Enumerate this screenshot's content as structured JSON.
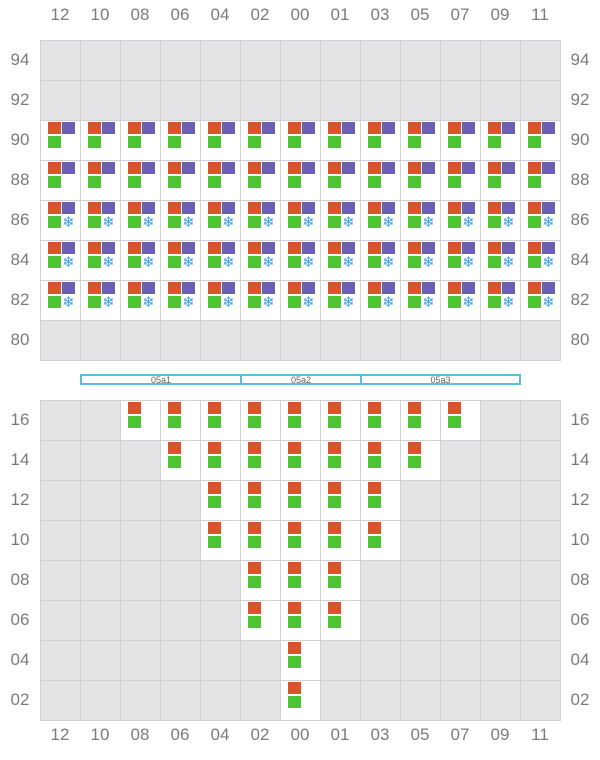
{
  "columns": [
    "12",
    "10",
    "08",
    "06",
    "04",
    "02",
    "00",
    "01",
    "03",
    "05",
    "07",
    "09",
    "11"
  ],
  "deck": {
    "rows": [
      "94",
      "92",
      "90",
      "88",
      "86",
      "84",
      "82",
      "80"
    ],
    "slots": {
      "90": {
        "from": 0,
        "to": 12,
        "pattern": "3box"
      },
      "88": {
        "from": 0,
        "to": 12,
        "pattern": "3box"
      },
      "86": {
        "from": 0,
        "to": 12,
        "pattern": "reefer"
      },
      "84": {
        "from": 0,
        "to": 12,
        "pattern": "reefer"
      },
      "82": {
        "from": 0,
        "to": 12,
        "pattern": "reefer"
      }
    }
  },
  "hatch_covers": [
    {
      "label": "05a1"
    },
    {
      "label": "05a2"
    },
    {
      "label": "05a3"
    }
  ],
  "hold": {
    "rows": [
      "16",
      "14",
      "12",
      "10",
      "08",
      "06",
      "04",
      "02"
    ],
    "slots": {
      "16": {
        "from": 2,
        "to": 10
      },
      "14": {
        "from": 3,
        "to": 9
      },
      "12": {
        "from": 4,
        "to": 8
      },
      "10": {
        "from": 4,
        "to": 8
      },
      "08": {
        "from": 5,
        "to": 7
      },
      "06": {
        "from": 5,
        "to": 7
      },
      "04": {
        "from": 6,
        "to": 6
      },
      "02": {
        "from": 6,
        "to": 6
      }
    },
    "pattern": "2box"
  },
  "colors": {
    "container_orange": "#d9532b",
    "container_purple": "#6a5fb3",
    "container_green": "#4dc432",
    "reefer_blue": "#3f9ee6",
    "empty_bay": "#e4e4e6",
    "hatch_border": "#5bbfd7"
  },
  "icons": {
    "reefer": "snowflake-icon"
  },
  "snowflake_glyph": "❄"
}
